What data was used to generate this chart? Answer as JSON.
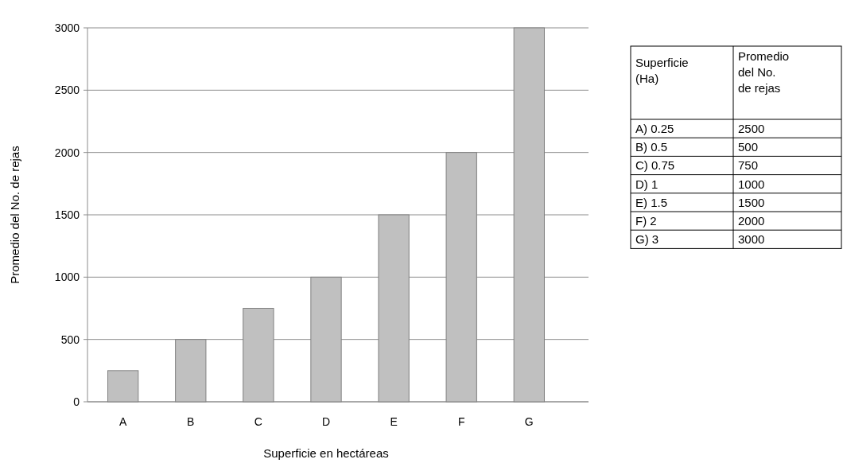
{
  "chart_data": [
    {
      "type": "bar",
      "xlabel": "Superficie en hectáreas",
      "ylabel": "Promedio del No. de rejas",
      "categories": [
        "A",
        "B",
        "C",
        "D",
        "E",
        "F",
        "G"
      ],
      "values": [
        250,
        500,
        750,
        1000,
        1500,
        2000,
        3000
      ],
      "color": "#c0c0c0",
      "ylim": [
        0,
        3000
      ],
      "yticks": [
        0,
        500,
        1000,
        1500,
        2000,
        2500,
        3000
      ],
      "grid": "y"
    },
    {
      "type": "other",
      "annotations": [
        "Superficie (Ha)",
        "Promedio del No. de rejas",
        "A) 0.25",
        "2500",
        "B) 0.5",
        "500",
        "C) 0.75",
        "750",
        "D) 1",
        "1000",
        "E) 1.5",
        "1500",
        "F) 2",
        "2000",
        "G) 3",
        "3000"
      ]
    }
  ]
}
